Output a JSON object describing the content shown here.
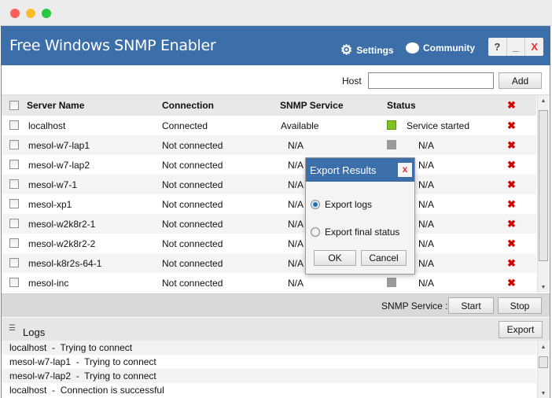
{
  "app": {
    "title": "Free Windows SNMP Enabler",
    "settings_label": "Settings",
    "community_label": "Community",
    "help": "?",
    "minimize": "_",
    "close": "X"
  },
  "host": {
    "label": "Host",
    "value": "",
    "add_label": "Add"
  },
  "table": {
    "headers": [
      "Server Name",
      "Connection",
      "SNMP Service",
      "Status"
    ],
    "rows": [
      {
        "name": "localhost",
        "connection": "Connected",
        "snmp": "Available",
        "status": "Service started",
        "active": true
      },
      {
        "name": "mesol-w7-lap1",
        "connection": "Not connected",
        "snmp": "N/A",
        "status": "N/A",
        "active": false
      },
      {
        "name": "mesol-w7-lap2",
        "connection": "Not connected",
        "snmp": "N/A",
        "status": "N/A",
        "active": false
      },
      {
        "name": "mesol-w7-1",
        "connection": "Not connected",
        "snmp": "N/A",
        "status": "N/A",
        "active": false
      },
      {
        "name": "mesol-xp1",
        "connection": "Not connected",
        "snmp": "N/A",
        "status": "N/A",
        "active": false
      },
      {
        "name": "mesol-w2k8r2-1",
        "connection": "Not connected",
        "snmp": "N/A",
        "status": "N/A",
        "active": false
      },
      {
        "name": "mesol-w2k8r2-2",
        "connection": "Not connected",
        "snmp": "N/A",
        "status": "N/A",
        "active": false
      },
      {
        "name": "mesol-k8r2s-64-1",
        "connection": "Not connected",
        "snmp": "N/A",
        "status": "N/A",
        "active": false
      },
      {
        "name": "mesol-inc",
        "connection": "Not connected",
        "snmp": "N/A",
        "status": "N/A",
        "active": false
      }
    ]
  },
  "snmp_bar": {
    "label": "SNMP Service  :",
    "start": "Start",
    "stop": "Stop"
  },
  "logs": {
    "title": "Logs",
    "export": "Export",
    "lines": [
      "localhost  -  Trying to connect",
      "mesol-w7-lap1  -  Trying to connect",
      "mesol-w7-lap2  -  Trying to connect",
      "localhost  -  Connection is successful"
    ]
  },
  "dialog": {
    "title": "Export Results",
    "close": "x",
    "options": [
      {
        "label": "Export logs",
        "selected": true
      },
      {
        "label": "Export final status",
        "selected": false
      }
    ],
    "ok": "OK",
    "cancel": "Cancel"
  },
  "colors": {
    "accent": "#3c6eaa",
    "status_on": "#7ec21f",
    "delete": "#d40000"
  }
}
